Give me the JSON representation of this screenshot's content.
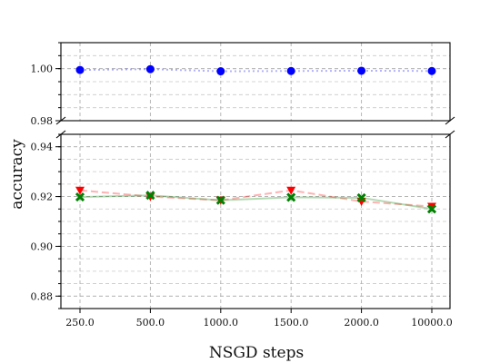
{
  "chart_data": {
    "type": "line",
    "xlabel": "NSGD steps",
    "ylabel": "accuracy",
    "categories": [
      "250.0",
      "500.0",
      "1000.0",
      "1500.0",
      "2000.0",
      "10000.0"
    ],
    "broken_axis": true,
    "top_panel": {
      "ylim": [
        0.98,
        1.01
      ],
      "yticks": [
        "0.98",
        "1.00"
      ]
    },
    "bottom_panel": {
      "ylim": [
        0.875,
        0.945
      ],
      "yticks": [
        "0.88",
        "0.90",
        "0.92",
        "0.94"
      ]
    },
    "grid": true,
    "series": [
      {
        "values": [
          0.9995,
          0.9998,
          0.999,
          0.9991,
          0.9992,
          0.9991
        ],
        "color": "#0000ff",
        "marker": "circle",
        "line_style": "dotted"
      },
      {
        "values": [
          0.9225,
          0.92,
          0.9185,
          0.9225,
          0.918,
          0.916
        ],
        "color": "#ff0000",
        "marker": "triangle-down",
        "line_style": "dashed"
      },
      {
        "values": [
          0.9198,
          0.9205,
          0.9185,
          0.9197,
          0.9195,
          0.915
        ],
        "color": "#008000",
        "marker": "x",
        "line_style": "solid"
      }
    ]
  }
}
